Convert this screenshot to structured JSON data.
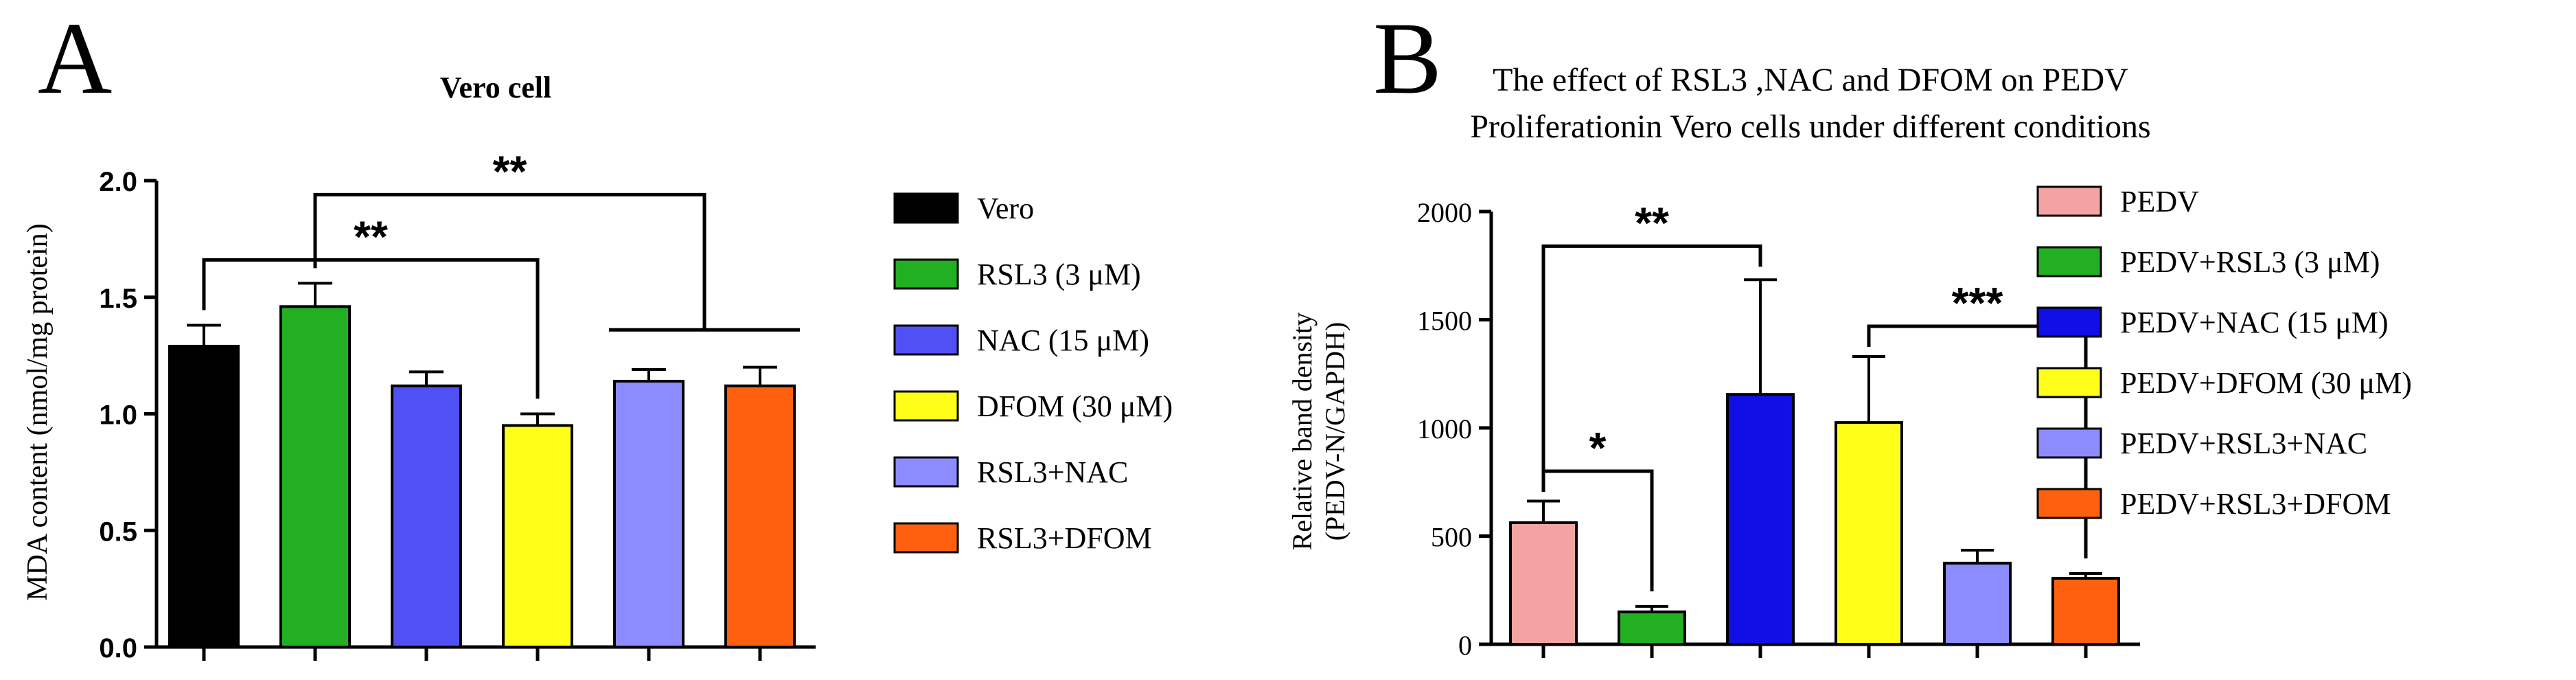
{
  "chart_data": [
    {
      "panel_label": "A",
      "type": "bar",
      "title": "Vero cell",
      "xlabel": "",
      "ylabel": "MDA content (nmol/mg protein)",
      "ylim": [
        0,
        2.0
      ],
      "yticks": [
        "0.0",
        "0.5",
        "1.0",
        "1.5",
        "2.0"
      ],
      "ytick_values": [
        0,
        0.5,
        1.0,
        1.5,
        2.0
      ],
      "categories": [
        "Vero",
        "RSL3 (3 μM)",
        "NAC (15 μM)",
        "DFOM (30 μM)",
        "RSL3+NAC",
        "RSL3+DFOM"
      ],
      "values": [
        1.29,
        1.46,
        1.12,
        0.95,
        1.14,
        1.12
      ],
      "errors": [
        0.09,
        0.1,
        0.06,
        0.05,
        0.05,
        0.08
      ],
      "colors": [
        "#000000",
        "#22b022",
        "#5050f5",
        "#ffff1a",
        "#8c8cff",
        "#ff6010"
      ],
      "legend_position": "right",
      "annotations": [
        {
          "label": "**",
          "from": 0,
          "to": 3,
          "type": "simple",
          "level": 1.66
        },
        {
          "label": "**",
          "from": 1,
          "to_group": [
            4,
            5
          ],
          "type": "group",
          "level": 1.94,
          "group_level": 1.36
        }
      ]
    },
    {
      "panel_label": "B",
      "type": "bar",
      "title": "The effect of RSL3 ,NAC and DFOM on PEDV",
      "subtitle": "Proliferationin Vero cells under different conditions",
      "xlabel": "",
      "ylabel": "Relative band density",
      "ylabel2": "(PEDV-N/GAPDH)",
      "ylim": [
        0,
        2000
      ],
      "yticks": [
        "0",
        "500",
        "1000",
        "1500",
        "2000"
      ],
      "ytick_values": [
        0,
        500,
        1000,
        1500,
        2000
      ],
      "categories": [
        "PEDV",
        "PEDV+RSL3 (3 μM)",
        "PEDV+NAC (15 μM)",
        "PEDV+DFOM (30 μM)",
        "PEDV+RSL3+NAC",
        "PEDV+RSL3+DFOM"
      ],
      "values": [
        562,
        150,
        1155,
        1025,
        375,
        305
      ],
      "errors": [
        100,
        25,
        530,
        305,
        60,
        22
      ],
      "colors": [
        "#f4a3a3",
        "#22b022",
        "#0f0fe6",
        "#ffff1a",
        "#8c8cff",
        "#ff6010"
      ],
      "legend_position": "right",
      "annotations": [
        {
          "label": "**",
          "from": 0,
          "to": 2,
          "type": "simple",
          "level": 1840
        },
        {
          "label": "*",
          "from": 0,
          "to": 1,
          "type": "simple",
          "level": 800
        },
        {
          "label": "***",
          "from": 3,
          "to": 5,
          "type": "simple",
          "level": 1470
        }
      ]
    }
  ]
}
